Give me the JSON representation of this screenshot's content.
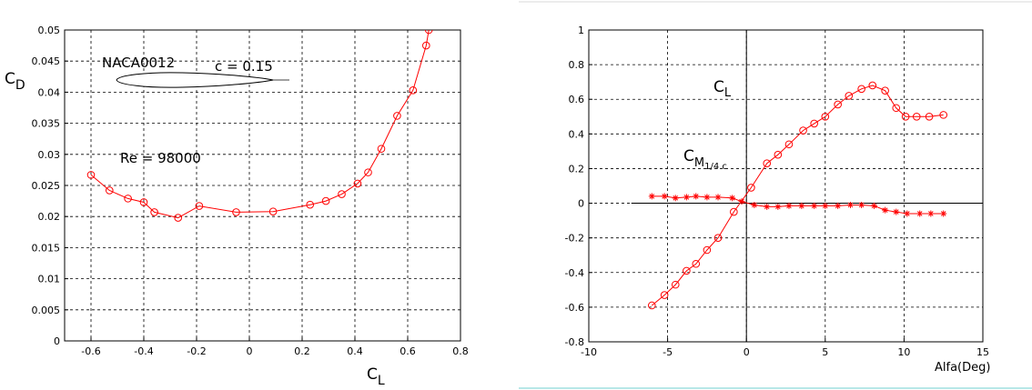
{
  "chart_data": [
    {
      "type": "line",
      "ylabel_main": "C",
      "ylabel_sub": "D",
      "xlabel_main": "C",
      "xlabel_sub": "L",
      "xlim": [
        -0.7,
        0.8
      ],
      "ylim": [
        0,
        0.05
      ],
      "grid": true,
      "xticks": [
        -0.6,
        -0.4,
        -0.2,
        0,
        0.2,
        0.4,
        0.6,
        0.8
      ],
      "yticks": [
        0,
        0.005,
        0.01,
        0.015,
        0.02,
        0.025,
        0.03,
        0.035,
        0.04,
        0.045,
        0.05
      ],
      "xtick_labels": [
        "-0.6",
        "-0.4",
        "-0.2",
        "0",
        "0.2",
        "0.4",
        "0.6",
        "0.8"
      ],
      "ytick_labels": [
        "0",
        "0.005",
        "0.01",
        "0.015",
        "0.02",
        "0.025",
        "0.03",
        "0.035",
        "0.04",
        "0.045",
        "0.05"
      ],
      "annotations": {
        "airfoil": "NACA0012",
        "chord": "c = 0.15",
        "reynolds": "Re = 98000"
      },
      "series": [
        {
          "color": "#ff0000",
          "marker": "circle",
          "x": [
            -0.6,
            -0.53,
            -0.46,
            -0.4,
            -0.36,
            -0.27,
            -0.19,
            -0.05,
            0.09,
            0.23,
            0.29,
            0.35,
            0.41,
            0.45,
            0.5,
            0.56,
            0.62,
            0.67,
            0.68
          ],
          "y": [
            0.0267,
            0.0242,
            0.0229,
            0.0223,
            0.0207,
            0.0198,
            0.0217,
            0.0207,
            0.0208,
            0.0219,
            0.0225,
            0.0236,
            0.0253,
            0.0271,
            0.0309,
            0.0362,
            0.0403,
            0.0475,
            0.05
          ]
        }
      ]
    },
    {
      "type": "line",
      "xlabel": "Alfa(Deg)",
      "xlim": [
        -10,
        15
      ],
      "ylim": [
        -0.8,
        1
      ],
      "grid": true,
      "xticks": [
        -10,
        -5,
        0,
        5,
        10,
        15
      ],
      "yticks": [
        -0.8,
        -0.6,
        -0.4,
        -0.2,
        0,
        0.2,
        0.4,
        0.6,
        0.8,
        1
      ],
      "xtick_labels": [
        "-10",
        "-5",
        "0",
        "5",
        "10",
        "15"
      ],
      "ytick_labels": [
        "-0.8",
        "-0.6",
        "-0.4",
        "-0.2",
        "0",
        "0.2",
        "0.4",
        "0.6",
        "0.8",
        "1"
      ],
      "annotations": {
        "cl_main": "C",
        "cl_sub": "L",
        "cm_main": "C",
        "cm_sub": "M",
        "cm_subsub": "1/4 c"
      },
      "series": [
        {
          "label": "CL",
          "color": "#ff0000",
          "marker": "circle",
          "x": [
            -6,
            -5.2,
            -4.5,
            -3.8,
            -3.2,
            -2.5,
            -1.8,
            -0.8,
            0.3,
            1.3,
            2,
            2.7,
            3.6,
            4.3,
            5,
            5.8,
            6.5,
            7.3,
            8,
            8.8,
            9.5,
            10.1,
            10.8,
            11.6,
            12.5
          ],
          "y": [
            -0.59,
            -0.53,
            -0.47,
            -0.39,
            -0.35,
            -0.27,
            -0.2,
            -0.05,
            0.09,
            0.23,
            0.28,
            0.34,
            0.42,
            0.46,
            0.5,
            0.57,
            0.62,
            0.66,
            0.68,
            0.65,
            0.55,
            0.5,
            0.5,
            0.5,
            0.51
          ]
        },
        {
          "label": "CM 1/4 c",
          "color": "#ff0000",
          "marker": "star",
          "x": [
            -6,
            -5.2,
            -4.5,
            -3.8,
            -3.2,
            -2.5,
            -1.8,
            -0.9,
            -0.3,
            0.5,
            1.3,
            2,
            2.7,
            3.5,
            4.3,
            5,
            5.8,
            6.6,
            7.3,
            8.1,
            8.8,
            9.5,
            10.2,
            11,
            11.7,
            12.5
          ],
          "y": [
            0.04,
            0.04,
            0.03,
            0.035,
            0.04,
            0.035,
            0.035,
            0.03,
            0.01,
            -0.01,
            -0.02,
            -0.02,
            -0.015,
            -0.015,
            -0.015,
            -0.015,
            -0.015,
            -0.01,
            -0.01,
            -0.015,
            -0.04,
            -0.05,
            -0.06,
            -0.06,
            -0.06,
            -0.06
          ]
        }
      ]
    }
  ]
}
